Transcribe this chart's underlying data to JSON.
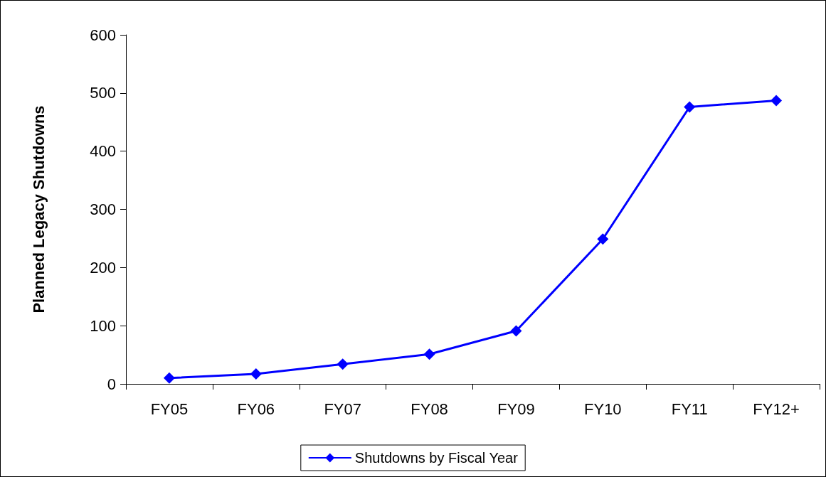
{
  "chart_data": {
    "type": "line",
    "ylabel": "Planned Legacy Shutdowns",
    "categories": [
      "FY05",
      "FY06",
      "FY07",
      "FY08",
      "FY09",
      "FY10",
      "FY11",
      "FY12+"
    ],
    "series": [
      {
        "name": "Shutdowns by Fiscal Year",
        "color": "#0000ff",
        "values": [
          10,
          17,
          34,
          51,
          91,
          249,
          476,
          487
        ]
      }
    ],
    "ylim": [
      0,
      600
    ],
    "yticks": [
      0,
      100,
      200,
      300,
      400,
      500,
      600
    ],
    "grid": false,
    "legend": "bottom",
    "marker": "diamond",
    "line_style": "solid"
  }
}
